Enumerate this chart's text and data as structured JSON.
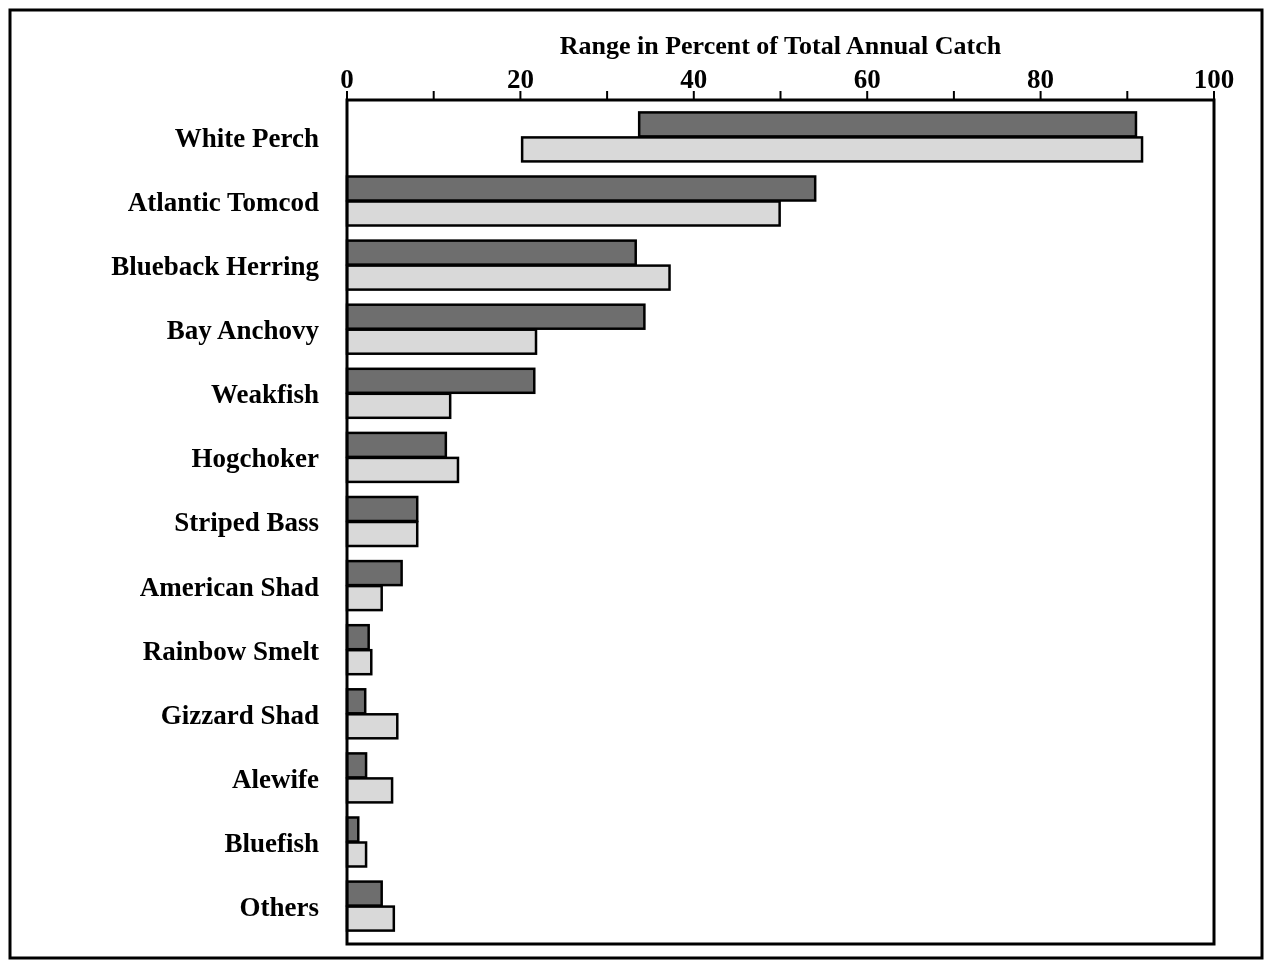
{
  "chart_data": {
    "type": "bar",
    "orientation": "horizontal",
    "xlabel": "Range in Percent of Total Annual Catch",
    "categories": [
      "White Perch",
      "Atlantic Tomcod",
      "Blueback Herring",
      "Bay Anchovy",
      "Weakfish",
      "Hogchoker",
      "Striped Bass",
      "American Shad",
      "Rainbow Smelt",
      "Gizzard Shad",
      "Alewife",
      "Bluefish",
      "Others"
    ],
    "series": [
      {
        "color": "#6e6e6e",
        "base": [
          33.7,
          0,
          0,
          0,
          0,
          0,
          0,
          0,
          0,
          0,
          0,
          0,
          0
        ],
        "values": [
          57.3,
          54.0,
          33.3,
          34.3,
          21.6,
          11.4,
          8.1,
          6.3,
          2.5,
          2.1,
          2.2,
          1.3,
          4.0
        ]
      },
      {
        "color": "#d9d9d9",
        "base": [
          20.2,
          0,
          0,
          0,
          0,
          0,
          0,
          0,
          0,
          0,
          0,
          0,
          0
        ],
        "values": [
          71.5,
          49.9,
          37.2,
          21.8,
          11.9,
          12.8,
          8.1,
          4.0,
          2.8,
          5.8,
          5.2,
          2.2,
          5.4
        ]
      }
    ],
    "xlim": [
      0,
      100
    ],
    "xticks": [
      0,
      {
        "value": 10,
        "label": null
      },
      20,
      {
        "value": 30,
        "label": null
      },
      40,
      {
        "value": 50,
        "label": null
      },
      60,
      {
        "value": 70,
        "label": null
      },
      80,
      {
        "value": 90,
        "label": null
      },
      100
    ],
    "grid": false
  }
}
